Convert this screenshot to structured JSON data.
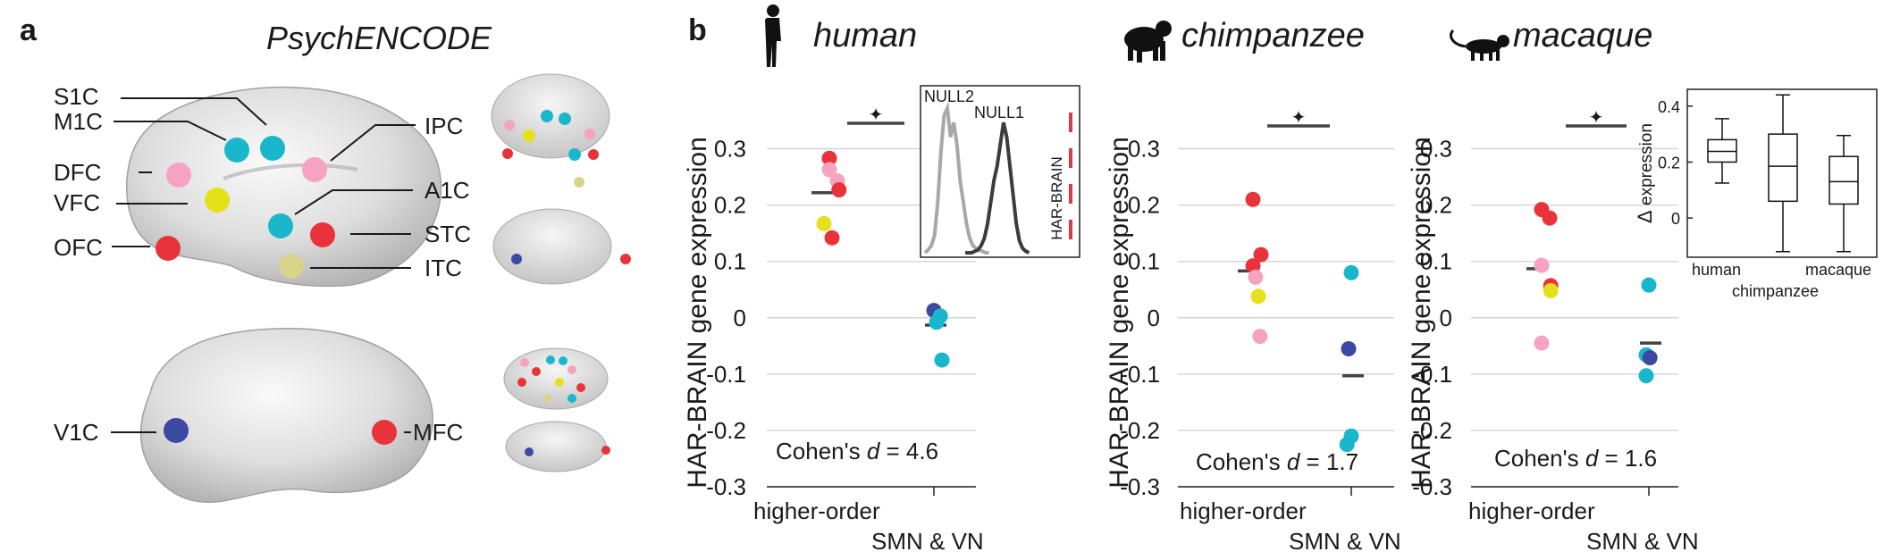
{
  "panel_a": {
    "letter": "a",
    "title": "PsychENCODE",
    "regions": [
      {
        "label": "S1C",
        "color": "#1ab7cc"
      },
      {
        "label": "M1C",
        "color": "#1ab7cc"
      },
      {
        "label": "DFC",
        "color": "#f5a3c0"
      },
      {
        "label": "VFC",
        "color": "#e5e01a"
      },
      {
        "label": "OFC",
        "color": "#e8333a"
      },
      {
        "label": "IPC",
        "color": "#f5a3c0"
      },
      {
        "label": "A1C",
        "color": "#1ab7cc"
      },
      {
        "label": "STC",
        "color": "#e8333a"
      },
      {
        "label": "ITC",
        "color": "#d8d48c"
      },
      {
        "label": "V1C",
        "color": "#3b49a3"
      },
      {
        "label": "MFC",
        "color": "#e8333a"
      }
    ]
  },
  "panel_b": {
    "letter": "b",
    "species": [
      {
        "name": "human",
        "icon": "human-silhouette-icon"
      },
      {
        "name": "chimpanzee",
        "icon": "chimpanzee-silhouette-icon"
      },
      {
        "name": "macaque",
        "icon": "macaque-silhouette-icon"
      }
    ]
  },
  "colors": {
    "pink": "#f5a3c0",
    "cyan": "#1ab7cc",
    "yellow": "#e5e01a",
    "red": "#e8333a",
    "navy": "#3b49a3",
    "olive": "#d8d48c",
    "mean_bar": "#444444"
  },
  "chart_data": [
    {
      "type": "scatter",
      "species": "human",
      "ylabel": "HAR-BRAIN gene expression",
      "ylim": [
        -0.3,
        0.35
      ],
      "yticks": [
        -0.3,
        -0.2,
        -0.1,
        0,
        0.1,
        0.2,
        0.3
      ],
      "ytick_labels": [
        "-0.3",
        "-0.2",
        "-0.1",
        "0",
        "0.1",
        "0.2",
        "0.3"
      ],
      "categories": [
        "higher-order",
        "SMN & VN"
      ],
      "grid": true,
      "annotation_prefix": "Cohen's ",
      "annotation_d": "d",
      "annotation_value": " = 4.6",
      "significance_marker": "✦",
      "significance_y": 0.36,
      "points": [
        {
          "group": 0,
          "offset": 0.0,
          "y": 0.283,
          "color": "red"
        },
        {
          "group": 0,
          "offset": 0.0,
          "y": 0.263,
          "color": "pink"
        },
        {
          "group": 0,
          "offset": 0.15,
          "y": 0.243,
          "color": "pink"
        },
        {
          "group": 0,
          "offset": 0.18,
          "y": 0.227,
          "color": "red"
        },
        {
          "group": 0,
          "offset": -0.1,
          "y": 0.167,
          "color": "yellow"
        },
        {
          "group": 0,
          "offset": 0.05,
          "y": 0.142,
          "color": "red"
        },
        {
          "group": 1,
          "offset": 0.0,
          "y": 0.013,
          "color": "navy"
        },
        {
          "group": 1,
          "offset": 0.12,
          "y": 0.003,
          "color": "cyan"
        },
        {
          "group": 1,
          "offset": 0.05,
          "y": -0.008,
          "color": "cyan"
        },
        {
          "group": 1,
          "offset": 0.15,
          "y": -0.075,
          "color": "cyan"
        }
      ],
      "means": [
        0.222,
        -0.013
      ],
      "inset": {
        "type": "line",
        "series": [
          {
            "name": "NULL2",
            "color": "#a8a8a8"
          },
          {
            "name": "NULL1",
            "color": "#3c3c3c"
          }
        ],
        "null2_x": [
          0,
          0.05,
          0.1,
          0.15,
          0.2,
          0.25,
          0.3,
          0.35,
          0.4,
          0.45,
          0.5,
          0.55,
          0.6,
          0.65,
          0.7,
          0.75,
          0.8,
          0.85,
          0.9,
          0.95,
          1.0
        ],
        "null2_y": [
          0,
          0.02,
          0.05,
          0.12,
          0.35,
          0.7,
          0.95,
          1.0,
          0.8,
          0.9,
          0.75,
          0.5,
          0.35,
          0.2,
          0.1,
          0.05,
          0.03,
          0.02,
          0.01,
          0,
          0
        ],
        "null1_x": [
          0,
          0.1,
          0.2,
          0.25,
          0.3,
          0.35,
          0.4,
          0.45,
          0.5,
          0.55,
          0.6,
          0.65,
          0.7,
          0.75,
          0.8,
          0.85,
          0.9,
          0.95,
          1.0
        ],
        "null1_y": [
          0,
          0,
          0.02,
          0.05,
          0.1,
          0.2,
          0.35,
          0.5,
          0.6,
          0.75,
          0.9,
          0.8,
          0.6,
          0.4,
          0.2,
          0.08,
          0.03,
          0.01,
          0
        ],
        "marker_label": "HAR-BRAIN",
        "marker_color": "#d83a48"
      }
    },
    {
      "type": "scatter",
      "species": "chimpanzee",
      "ylabel": "HAR-BRAIN gene expression",
      "ylim": [
        -0.3,
        0.35
      ],
      "yticks": [
        -0.3,
        -0.2,
        -0.1,
        0,
        0.1,
        0.2,
        0.3
      ],
      "ytick_labels": [
        "-0.3",
        "-0.2",
        "-0.1",
        "0",
        "0.1",
        "0.2",
        "0.3"
      ],
      "categories": [
        "higher-order",
        "SMN & VN"
      ],
      "grid": true,
      "annotation_prefix": "Cohen's ",
      "annotation_d": "d",
      "annotation_value": " = 1.7",
      "significance_marker": "✦",
      "significance_y": 0.36,
      "points": [
        {
          "group": 0,
          "offset": -0.05,
          "y": 0.21,
          "color": "red"
        },
        {
          "group": 0,
          "offset": 0.1,
          "y": 0.112,
          "color": "red"
        },
        {
          "group": 0,
          "offset": -0.05,
          "y": 0.092,
          "color": "red"
        },
        {
          "group": 0,
          "offset": 0.0,
          "y": 0.072,
          "color": "pink"
        },
        {
          "group": 0,
          "offset": 0.05,
          "y": 0.038,
          "color": "yellow"
        },
        {
          "group": 0,
          "offset": 0.08,
          "y": -0.033,
          "color": "pink"
        },
        {
          "group": 1,
          "offset": 0.0,
          "y": 0.08,
          "color": "cyan"
        },
        {
          "group": 1,
          "offset": -0.05,
          "y": -0.055,
          "color": "navy"
        },
        {
          "group": 1,
          "offset": 0.0,
          "y": -0.21,
          "color": "cyan"
        },
        {
          "group": 1,
          "offset": -0.08,
          "y": -0.225,
          "color": "cyan"
        }
      ],
      "means": [
        0.083,
        -0.103
      ]
    },
    {
      "type": "scatter",
      "species": "macaque",
      "ylabel": "HAR-BRAIN gene expression",
      "ylim": [
        -0.3,
        0.35
      ],
      "yticks": [
        -0.3,
        -0.2,
        -0.1,
        0,
        0.1,
        0.2,
        0.3
      ],
      "ytick_labels": [
        "-0.3",
        "-0.2",
        "-0.1",
        "0",
        "0.1",
        "0.2",
        "0.3"
      ],
      "categories": [
        "higher-order",
        "SMN & VN"
      ],
      "grid": true,
      "annotation_prefix": "Cohen's ",
      "annotation_d": "d",
      "annotation_value": " = 1.6",
      "significance_marker": "✦",
      "significance_y": 0.36,
      "points": [
        {
          "group": 0,
          "offset": -0.05,
          "y": 0.192,
          "color": "red"
        },
        {
          "group": 0,
          "offset": 0.1,
          "y": 0.177,
          "color": "red"
        },
        {
          "group": 0,
          "offset": -0.05,
          "y": 0.093,
          "color": "pink"
        },
        {
          "group": 0,
          "offset": 0.12,
          "y": 0.057,
          "color": "red"
        },
        {
          "group": 0,
          "offset": 0.12,
          "y": 0.048,
          "color": "yellow"
        },
        {
          "group": 0,
          "offset": -0.05,
          "y": -0.045,
          "color": "pink"
        },
        {
          "group": 1,
          "offset": 0.0,
          "y": 0.058,
          "color": "cyan"
        },
        {
          "group": 1,
          "offset": -0.05,
          "y": -0.066,
          "color": "cyan"
        },
        {
          "group": 1,
          "offset": 0.02,
          "y": -0.071,
          "color": "navy"
        },
        {
          "group": 1,
          "offset": -0.05,
          "y": -0.103,
          "color": "cyan"
        }
      ],
      "means": [
        0.087,
        -0.045
      ]
    },
    {
      "type": "box",
      "ylabel_prefix": "Δ",
      "ylabel_rest": " expression",
      "ylim": [
        -0.14,
        0.46
      ],
      "yticks": [
        0,
        0.2,
        0.4
      ],
      "ytick_labels": [
        "0",
        "0.2",
        "0.4"
      ],
      "categories": [
        "human",
        "chimpanzee",
        "macaque"
      ],
      "boxes": [
        {
          "name": "human",
          "min": 0.125,
          "q1": 0.2,
          "median": 0.238,
          "q3": 0.28,
          "max": 0.355
        },
        {
          "name": "chimpanzee",
          "min": -0.12,
          "q1": 0.06,
          "median": 0.185,
          "q3": 0.3,
          "max": 0.44
        },
        {
          "name": "macaque",
          "min": -0.12,
          "q1": 0.05,
          "median": 0.13,
          "q3": 0.22,
          "max": 0.295
        }
      ]
    }
  ]
}
